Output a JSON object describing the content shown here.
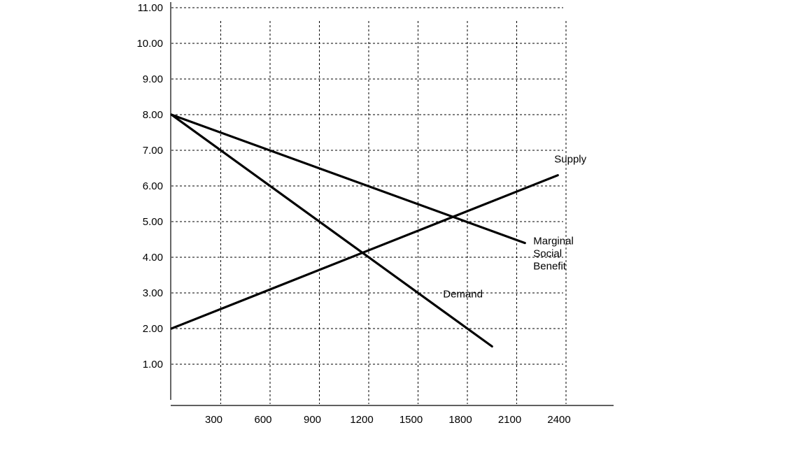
{
  "chart_data": {
    "type": "line",
    "title": "",
    "xlabel": "",
    "ylabel": "",
    "xlim": [
      0,
      2400
    ],
    "ylim": [
      0,
      11
    ],
    "grid": true,
    "x_ticks": [
      "300",
      "600",
      "900",
      "1200",
      "1500",
      "1800",
      "2100",
      "2400"
    ],
    "y_ticks": [
      "11.00",
      "10.00",
      "9.00",
      "8.00",
      "7.00",
      "6.00",
      "5.00",
      "4.00",
      "3.00",
      "2.00",
      "1.00"
    ],
    "series": [
      {
        "name": "Supply",
        "x": [
          0,
          2350
        ],
        "y": [
          2.0,
          6.3
        ]
      },
      {
        "name": "Marginal Social Benefit",
        "x": [
          0,
          2150
        ],
        "y": [
          8.0,
          4.4
        ]
      },
      {
        "name": "Demand",
        "x": [
          0,
          1950
        ],
        "y": [
          8.0,
          1.5
        ]
      }
    ],
    "annotations": [
      {
        "text": "Supply",
        "series": "Supply"
      },
      {
        "text": [
          "Marginal",
          "Social",
          "Benefit"
        ],
        "series": "Marginal Social Benefit"
      },
      {
        "text": "Demand",
        "series": "Demand"
      }
    ]
  }
}
